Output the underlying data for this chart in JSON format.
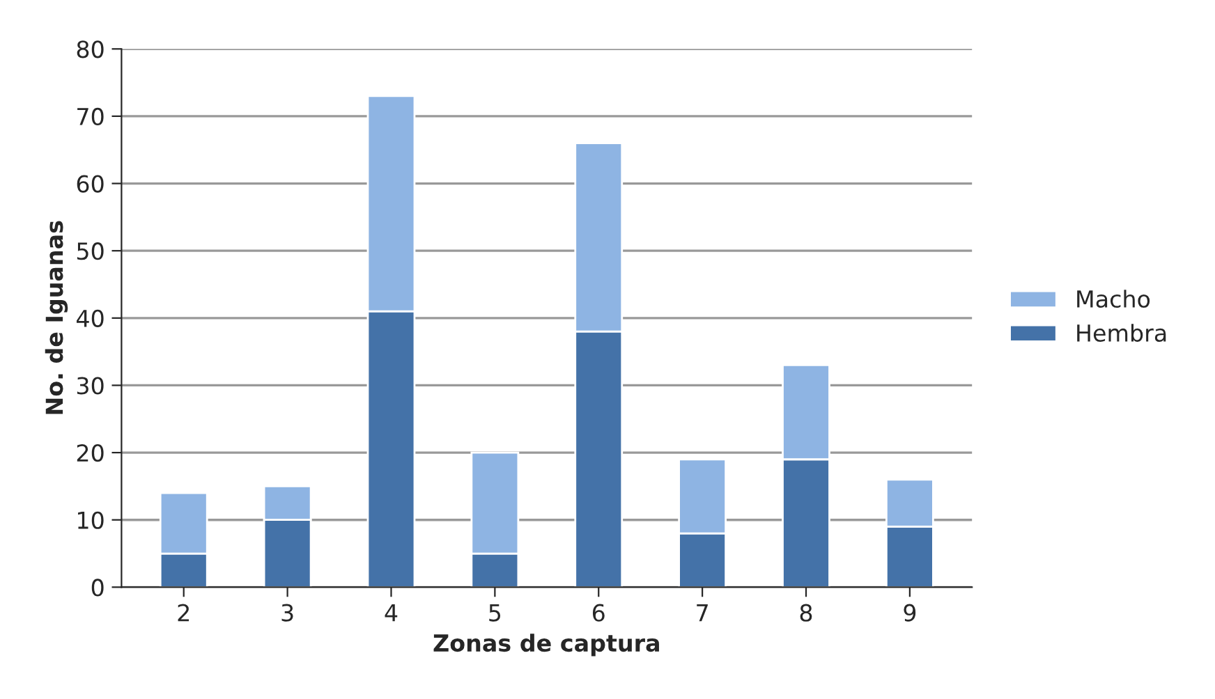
{
  "chart_data": {
    "type": "bar",
    "stacked": true,
    "xlabel": "Zonas de captura",
    "ylabel": "No. de Iguanas",
    "categories": [
      "2",
      "3",
      "4",
      "5",
      "6",
      "7",
      "8",
      "9"
    ],
    "series": [
      {
        "name": "Hembra",
        "color": "#4472a8",
        "values": [
          5,
          10,
          41,
          5,
          38,
          8,
          19,
          9
        ]
      },
      {
        "name": "Macho",
        "color": "#8eb4e3",
        "values": [
          9,
          5,
          32,
          15,
          28,
          11,
          14,
          7
        ]
      }
    ],
    "ylim": [
      0,
      80
    ],
    "yticks": [
      0,
      10,
      20,
      30,
      40,
      50,
      60,
      70,
      80
    ],
    "grid": "y",
    "legend": "right"
  }
}
